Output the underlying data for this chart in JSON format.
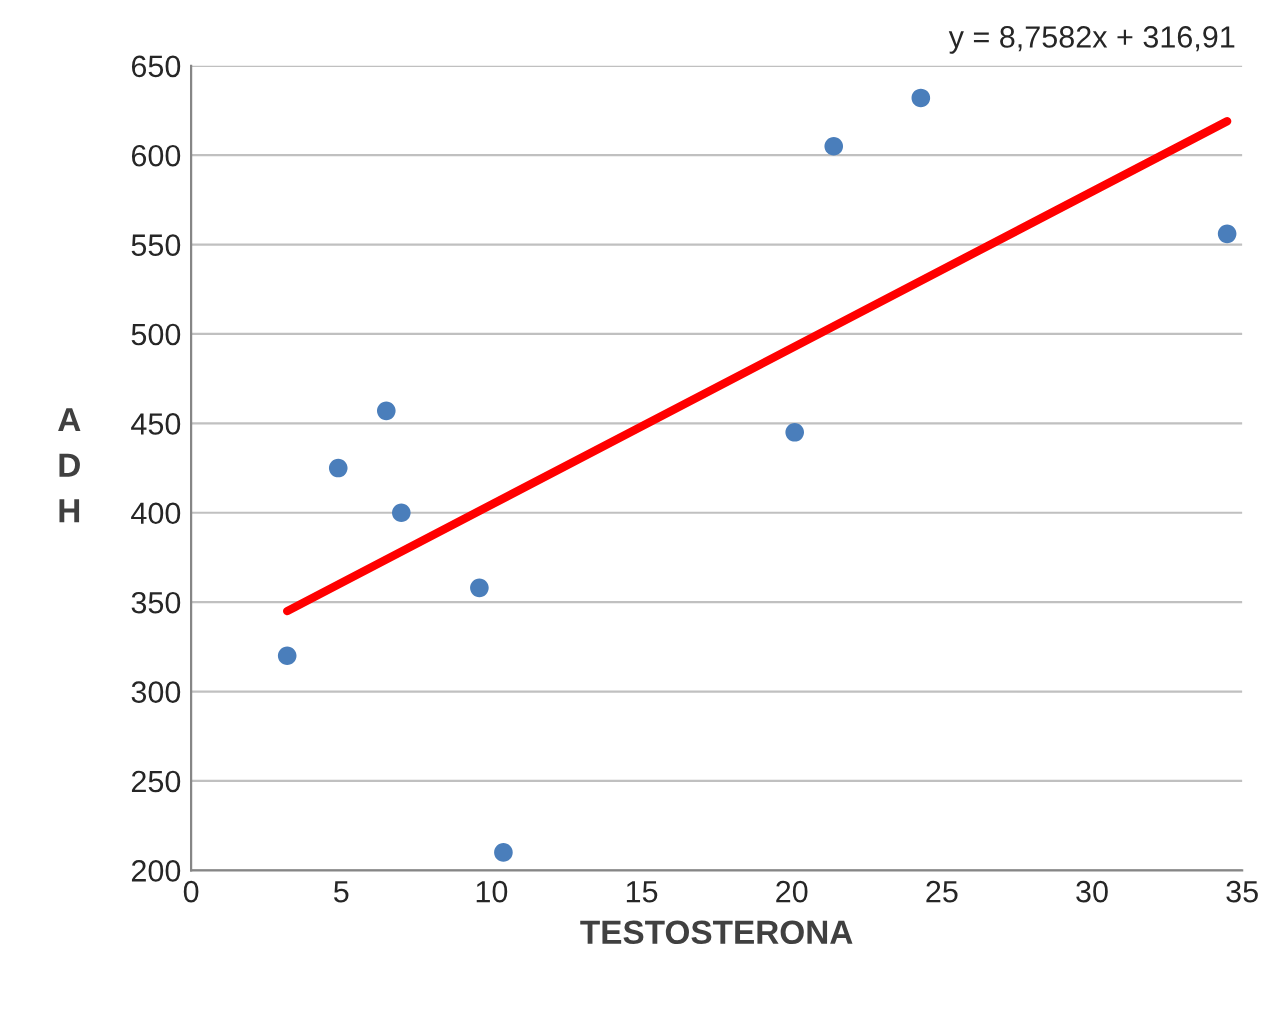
{
  "chart_data": {
    "type": "scatter",
    "xlabel": "TESTOSTERONA",
    "ylabel": "ADH",
    "annotations": [
      "y = 8,7582x + 316,91"
    ],
    "xlim": [
      0,
      35
    ],
    "xticks": [
      0,
      5,
      10,
      15,
      20,
      25,
      30,
      35
    ],
    "ylim": [
      200,
      650
    ],
    "yticks": [
      200,
      250,
      300,
      350,
      400,
      450,
      500,
      550,
      600,
      650
    ],
    "grid": "y",
    "series": [
      {
        "marker": "circle",
        "color": "#4a7ebb",
        "x": [
          3.2,
          4.9,
          6.5,
          7.0,
          9.6,
          10.4,
          20.1,
          21.4,
          24.3,
          34.5
        ],
        "values": [
          320,
          425,
          457,
          400,
          358,
          210,
          445,
          605,
          632,
          556
        ]
      },
      {
        "type": "line",
        "marker": "none",
        "color": "#ff0000",
        "x": [
          3.2,
          34.5
        ],
        "values": [
          345,
          619
        ]
      }
    ]
  }
}
